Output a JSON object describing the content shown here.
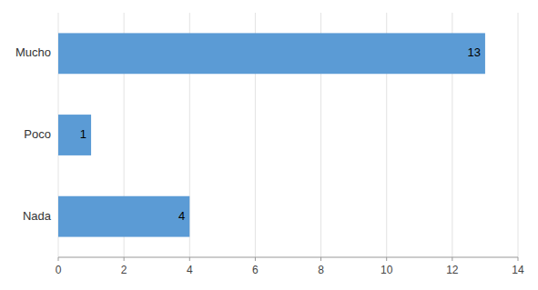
{
  "chart_data": {
    "type": "bar",
    "orientation": "horizontal",
    "categories": [
      "Mucho",
      "Poco",
      "Nada"
    ],
    "values": [
      13,
      1,
      4
    ],
    "color": "#5b9bd5",
    "xlim": [
      0,
      14
    ],
    "xticks": [
      0,
      2,
      4,
      6,
      8,
      10,
      12,
      14
    ],
    "grid": true,
    "data_labels": true
  }
}
